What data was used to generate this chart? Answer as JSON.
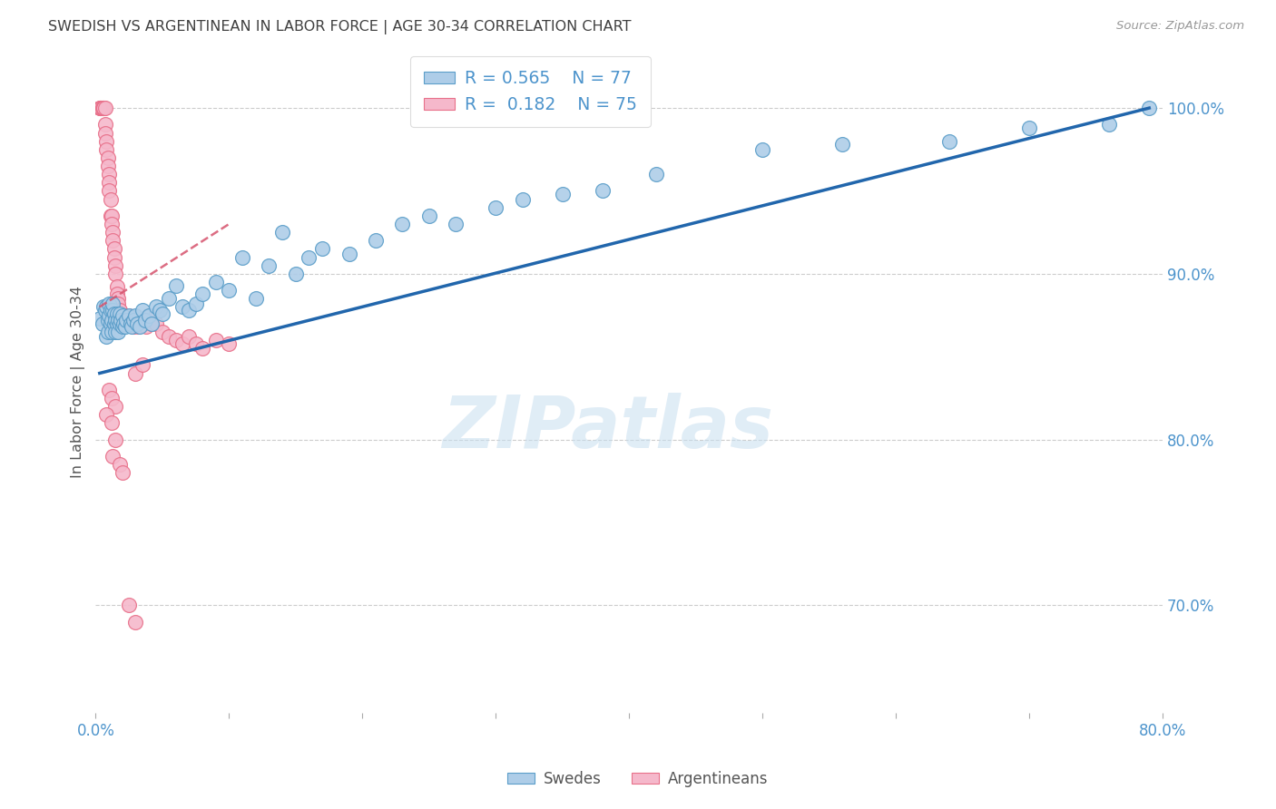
{
  "title": "SWEDISH VS ARGENTINEAN IN LABOR FORCE | AGE 30-34 CORRELATION CHART",
  "source": "Source: ZipAtlas.com",
  "ylabel": "In Labor Force | Age 30-34",
  "xlim": [
    0.0,
    0.8
  ],
  "ylim": [
    0.635,
    1.035
  ],
  "xticks": [
    0.0,
    0.1,
    0.2,
    0.3,
    0.4,
    0.5,
    0.6,
    0.7,
    0.8
  ],
  "xticklabels": [
    "0.0%",
    "",
    "",
    "",
    "",
    "",
    "",
    "",
    "80.0%"
  ],
  "yticks_right": [
    0.7,
    0.8,
    0.9,
    1.0
  ],
  "yticklabels_right": [
    "70.0%",
    "80.0%",
    "90.0%",
    "100.0%"
  ],
  "watermark": "ZIPatlas",
  "legend_blue_r": "R = 0.565",
  "legend_blue_n": "N = 77",
  "legend_pink_r": "R = 0.182",
  "legend_pink_n": "N = 75",
  "legend_blue_label": "Swedes",
  "legend_pink_label": "Argentineans",
  "blue_color": "#aecde8",
  "pink_color": "#f5b8cb",
  "blue_edge_color": "#5b9ec9",
  "pink_edge_color": "#e8708a",
  "blue_line_color": "#2166ac",
  "pink_line_color": "#d6536d",
  "title_color": "#404040",
  "axis_color": "#4d94cc",
  "swedes_x": [
    0.003,
    0.005,
    0.006,
    0.007,
    0.008,
    0.008,
    0.009,
    0.009,
    0.01,
    0.01,
    0.011,
    0.011,
    0.012,
    0.012,
    0.013,
    0.013,
    0.014,
    0.014,
    0.015,
    0.015,
    0.016,
    0.016,
    0.017,
    0.017,
    0.018,
    0.018,
    0.019,
    0.02,
    0.02,
    0.021,
    0.022,
    0.023,
    0.025,
    0.026,
    0.027,
    0.028,
    0.03,
    0.031,
    0.033,
    0.035,
    0.037,
    0.04,
    0.042,
    0.045,
    0.048,
    0.05,
    0.055,
    0.06,
    0.065,
    0.07,
    0.075,
    0.08,
    0.09,
    0.1,
    0.11,
    0.12,
    0.13,
    0.14,
    0.15,
    0.16,
    0.17,
    0.19,
    0.21,
    0.23,
    0.25,
    0.27,
    0.3,
    0.32,
    0.35,
    0.38,
    0.42,
    0.5,
    0.56,
    0.64,
    0.7,
    0.76,
    0.79
  ],
  "swedes_y": [
    0.873,
    0.87,
    0.88,
    0.878,
    0.862,
    0.88,
    0.865,
    0.872,
    0.875,
    0.882,
    0.87,
    0.878,
    0.865,
    0.872,
    0.878,
    0.882,
    0.87,
    0.876,
    0.865,
    0.872,
    0.87,
    0.876,
    0.865,
    0.872,
    0.87,
    0.876,
    0.872,
    0.868,
    0.875,
    0.87,
    0.868,
    0.872,
    0.875,
    0.87,
    0.868,
    0.872,
    0.875,
    0.87,
    0.868,
    0.878,
    0.872,
    0.875,
    0.87,
    0.88,
    0.878,
    0.876,
    0.885,
    0.893,
    0.88,
    0.878,
    0.882,
    0.888,
    0.895,
    0.89,
    0.91,
    0.885,
    0.905,
    0.925,
    0.9,
    0.91,
    0.915,
    0.912,
    0.92,
    0.93,
    0.935,
    0.93,
    0.94,
    0.945,
    0.948,
    0.95,
    0.96,
    0.975,
    0.978,
    0.98,
    0.988,
    0.99,
    1.0
  ],
  "argentineans_x": [
    0.003,
    0.003,
    0.004,
    0.004,
    0.005,
    0.005,
    0.006,
    0.006,
    0.007,
    0.007,
    0.007,
    0.008,
    0.008,
    0.009,
    0.009,
    0.01,
    0.01,
    0.01,
    0.011,
    0.011,
    0.012,
    0.012,
    0.013,
    0.013,
    0.014,
    0.014,
    0.015,
    0.015,
    0.016,
    0.016,
    0.017,
    0.017,
    0.018,
    0.018,
    0.019,
    0.02,
    0.02,
    0.021,
    0.022,
    0.022,
    0.023,
    0.024,
    0.025,
    0.026,
    0.027,
    0.028,
    0.03,
    0.032,
    0.035,
    0.038,
    0.04,
    0.042,
    0.045,
    0.05,
    0.055,
    0.06,
    0.065,
    0.07,
    0.075,
    0.08,
    0.09,
    0.1,
    0.03,
    0.035,
    0.01,
    0.012,
    0.015,
    0.008,
    0.012,
    0.015,
    0.013,
    0.018,
    0.02,
    0.025,
    0.03
  ],
  "argentineans_y": [
    1.0,
    1.0,
    1.0,
    1.0,
    1.0,
    1.0,
    1.0,
    1.0,
    1.0,
    0.99,
    0.985,
    0.98,
    0.975,
    0.97,
    0.965,
    0.96,
    0.955,
    0.95,
    0.945,
    0.935,
    0.935,
    0.93,
    0.925,
    0.92,
    0.915,
    0.91,
    0.905,
    0.9,
    0.892,
    0.888,
    0.885,
    0.882,
    0.878,
    0.875,
    0.872,
    0.87,
    0.875,
    0.87,
    0.875,
    0.87,
    0.875,
    0.872,
    0.875,
    0.872,
    0.87,
    0.868,
    0.87,
    0.868,
    0.87,
    0.868,
    0.875,
    0.87,
    0.87,
    0.865,
    0.862,
    0.86,
    0.858,
    0.862,
    0.858,
    0.855,
    0.86,
    0.858,
    0.84,
    0.845,
    0.83,
    0.825,
    0.82,
    0.815,
    0.81,
    0.8,
    0.79,
    0.785,
    0.78,
    0.7,
    0.69
  ],
  "blue_trendline_x": [
    0.003,
    0.79
  ],
  "blue_trendline_y": [
    0.84,
    1.0
  ],
  "pink_trendline_x": [
    0.003,
    0.1
  ],
  "pink_trendline_y": [
    0.88,
    0.93
  ]
}
